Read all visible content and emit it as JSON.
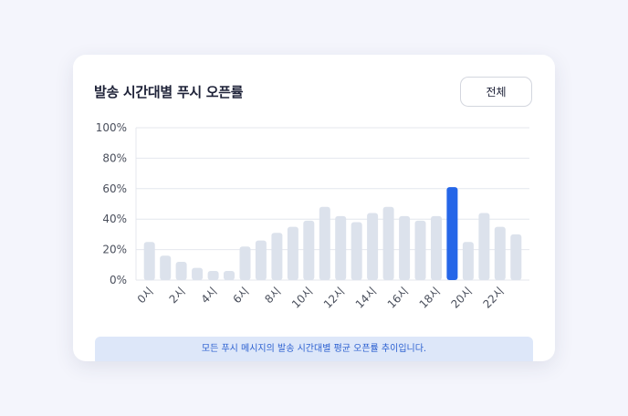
{
  "card": {
    "title": "발송 시간대별 푸시 오픈률",
    "filter_button": "전체",
    "footnote": "모든 푸시 메시지의 발송 시간대별 평균 오픈률 추이입니다."
  },
  "colors": {
    "bar_default": "#dce2ec",
    "bar_highlight": "#2566e8",
    "grid": "#e4e7ee",
    "axis_text": "#4a4f5c"
  },
  "chart_data": {
    "type": "bar",
    "title": "발송 시간대별 푸시 오픈률",
    "xlabel": "",
    "ylabel": "",
    "ylim": [
      0,
      100
    ],
    "y_ticks": [
      "0%",
      "20%",
      "40%",
      "60%",
      "80%",
      "100%"
    ],
    "y_tick_values": [
      0,
      20,
      40,
      60,
      80,
      100
    ],
    "categories": [
      "0시",
      "1시",
      "2시",
      "3시",
      "4시",
      "5시",
      "6시",
      "7시",
      "8시",
      "9시",
      "10시",
      "11시",
      "12시",
      "13시",
      "14시",
      "15시",
      "16시",
      "17시",
      "18시",
      "19시",
      "20시",
      "21시",
      "22시",
      "23시"
    ],
    "values": [
      25,
      16,
      12,
      8,
      6,
      6,
      22,
      26,
      31,
      35,
      39,
      48,
      42,
      38,
      44,
      48,
      42,
      39,
      42,
      61,
      25,
      44,
      35,
      30
    ],
    "highlight_category": "19시",
    "visible_tick_labels": [
      "0시",
      "2시",
      "4시",
      "6시",
      "8시",
      "10시",
      "12시",
      "14시",
      "16시",
      "18시",
      "20시",
      "22시"
    ],
    "grid": true,
    "legend": "none"
  }
}
